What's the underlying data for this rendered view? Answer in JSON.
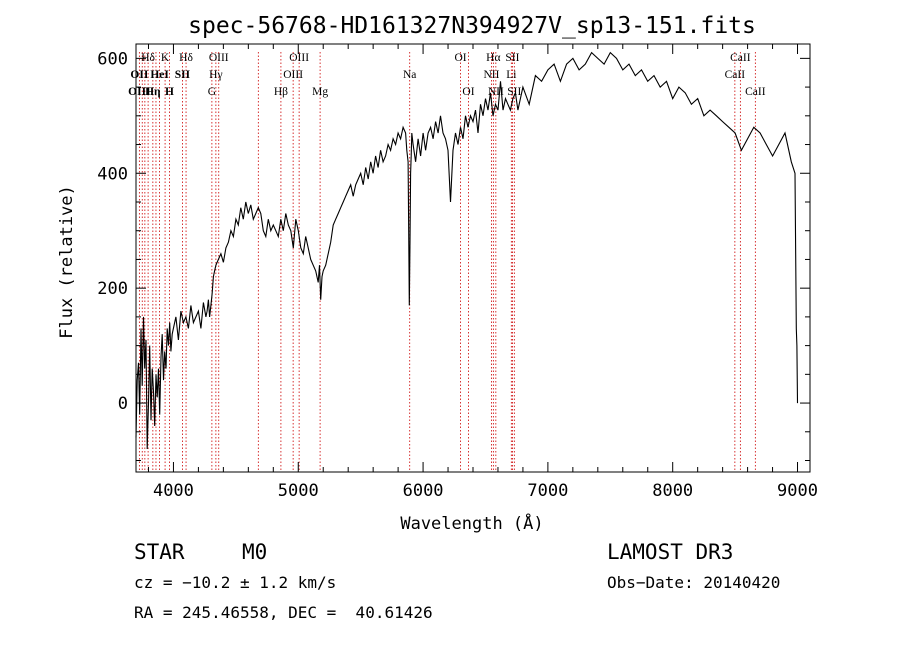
{
  "chart_data": {
    "type": "line",
    "title": "spec-56768-HD161327N394927V_sp13-151.fits",
    "xlabel": "Wavelength (Å)",
    "ylabel": "Flux (relative)",
    "xlim": [
      3700,
      9100
    ],
    "ylim": [
      -120,
      625
    ],
    "xticks": [
      4000,
      5000,
      6000,
      7000,
      8000,
      9000
    ],
    "yticks": [
      0,
      200,
      400,
      600
    ],
    "x": [
      3700,
      3710,
      3720,
      3730,
      3740,
      3750,
      3760,
      3770,
      3780,
      3790,
      3800,
      3810,
      3820,
      3830,
      3840,
      3850,
      3860,
      3870,
      3880,
      3890,
      3900,
      3910,
      3920,
      3930,
      3940,
      3950,
      3960,
      3970,
      3980,
      3990,
      4000,
      4020,
      4040,
      4060,
      4080,
      4100,
      4120,
      4140,
      4160,
      4180,
      4200,
      4220,
      4240,
      4260,
      4270,
      4280,
      4290,
      4300,
      4310,
      4320,
      4330,
      4340,
      4360,
      4380,
      4400,
      4420,
      4440,
      4460,
      4480,
      4500,
      4520,
      4540,
      4560,
      4580,
      4600,
      4620,
      4640,
      4660,
      4680,
      4700,
      4720,
      4740,
      4760,
      4780,
      4800,
      4820,
      4840,
      4860,
      4880,
      4900,
      4920,
      4940,
      4960,
      4980,
      5000,
      5020,
      5040,
      5060,
      5080,
      5100,
      5120,
      5140,
      5160,
      5170,
      5180,
      5190,
      5200,
      5220,
      5240,
      5260,
      5280,
      5300,
      5320,
      5340,
      5360,
      5380,
      5400,
      5420,
      5440,
      5460,
      5480,
      5500,
      5520,
      5540,
      5560,
      5580,
      5600,
      5620,
      5640,
      5660,
      5680,
      5700,
      5720,
      5740,
      5760,
      5780,
      5800,
      5820,
      5840,
      5860,
      5870,
      5880,
      5885,
      5890,
      5895,
      5900,
      5905,
      5910,
      5920,
      5940,
      5960,
      5980,
      6000,
      6020,
      6040,
      6060,
      6080,
      6100,
      6120,
      6140,
      6160,
      6180,
      6200,
      6220,
      6240,
      6260,
      6280,
      6300,
      6320,
      6340,
      6360,
      6380,
      6400,
      6420,
      6440,
      6460,
      6480,
      6500,
      6520,
      6540,
      6560,
      6580,
      6600,
      6620,
      6640,
      6660,
      6680,
      6700,
      6720,
      6740,
      6760,
      6780,
      6800,
      6850,
      6900,
      6950,
      7000,
      7050,
      7100,
      7150,
      7200,
      7250,
      7300,
      7350,
      7400,
      7450,
      7500,
      7550,
      7600,
      7650,
      7700,
      7750,
      7800,
      7850,
      7900,
      7950,
      8000,
      8050,
      8100,
      8150,
      8200,
      8250,
      8300,
      8350,
      8400,
      8450,
      8500,
      8550,
      8600,
      8650,
      8700,
      8750,
      8800,
      8850,
      8900,
      8950,
      8980,
      8990,
      8995,
      9000
    ],
    "y": [
      -60,
      40,
      70,
      -20,
      130,
      30,
      150,
      60,
      110,
      -80,
      0,
      100,
      -30,
      60,
      20,
      -40,
      50,
      10,
      60,
      -20,
      80,
      120,
      40,
      90,
      60,
      130,
      100,
      140,
      90,
      120,
      130,
      150,
      110,
      160,
      140,
      150,
      130,
      170,
      140,
      150,
      160,
      130,
      175,
      150,
      160,
      180,
      150,
      170,
      190,
      220,
      230,
      240,
      250,
      260,
      245,
      270,
      280,
      300,
      290,
      320,
      310,
      340,
      320,
      350,
      330,
      345,
      320,
      330,
      340,
      330,
      300,
      290,
      320,
      300,
      310,
      300,
      290,
      320,
      300,
      330,
      310,
      300,
      270,
      320,
      300,
      270,
      260,
      290,
      270,
      250,
      240,
      230,
      210,
      240,
      180,
      220,
      230,
      240,
      260,
      280,
      310,
      320,
      330,
      340,
      350,
      360,
      370,
      380,
      360,
      380,
      390,
      400,
      380,
      410,
      390,
      420,
      400,
      430,
      410,
      440,
      420,
      430,
      450,
      440,
      460,
      450,
      470,
      460,
      480,
      470,
      440,
      420,
      300,
      170,
      280,
      400,
      430,
      470,
      450,
      420,
      460,
      430,
      470,
      440,
      470,
      480,
      460,
      490,
      470,
      500,
      470,
      460,
      440,
      350,
      440,
      470,
      450,
      480,
      460,
      500,
      480,
      500,
      490,
      510,
      470,
      520,
      500,
      530,
      510,
      540,
      500,
      520,
      510,
      560,
      510,
      530,
      520,
      510,
      530,
      540,
      510,
      530,
      550,
      520,
      570,
      560,
      580,
      590,
      560,
      590,
      600,
      580,
      590,
      610,
      600,
      590,
      610,
      600,
      580,
      590,
      570,
      580,
      560,
      570,
      550,
      560,
      530,
      550,
      540,
      520,
      530,
      500,
      510,
      500,
      490,
      480,
      470,
      440,
      460,
      480,
      470,
      450,
      430,
      450,
      470,
      420,
      400,
      130,
      100,
      0
    ]
  },
  "lines": [
    {
      "label": "Hδ",
      "lambda": 3797,
      "row": 0,
      "bold": false
    },
    {
      "label": "K",
      "lambda": 3933,
      "row": 0,
      "bold": false
    },
    {
      "label": "Hδ",
      "lambda": 4101,
      "row": 0,
      "bold": false
    },
    {
      "label": "OIII",
      "lambda": 4363,
      "row": 0,
      "bold": false
    },
    {
      "label": "OIII",
      "lambda": 5007,
      "row": 0,
      "bold": false
    },
    {
      "label": "OI",
      "lambda": 6300,
      "row": 0,
      "bold": false
    },
    {
      "label": "Hα",
      "lambda": 6563,
      "row": 0,
      "bold": false
    },
    {
      "label": "SII",
      "lambda": 6716,
      "row": 0,
      "bold": false
    },
    {
      "label": "CaII",
      "lambda": 8542,
      "row": 0,
      "bold": false
    },
    {
      "label": "OII",
      "lambda": 3727,
      "row": 1,
      "bold": true
    },
    {
      "label": "HeI",
      "lambda": 3889,
      "row": 1,
      "bold": true
    },
    {
      "label": "SII",
      "lambda": 4072,
      "row": 1,
      "bold": true
    },
    {
      "label": "Hγ",
      "lambda": 4340,
      "row": 1,
      "bold": false
    },
    {
      "label": "OIII",
      "lambda": 4959,
      "row": 1,
      "bold": false
    },
    {
      "label": "Na",
      "lambda": 5893,
      "row": 1,
      "bold": false
    },
    {
      "label": "NII",
      "lambda": 6548,
      "row": 1,
      "bold": false
    },
    {
      "label": "Li",
      "lambda": 6707,
      "row": 1,
      "bold": false
    },
    {
      "label": "CaII",
      "lambda": 8498,
      "row": 1,
      "bold": false
    },
    {
      "label": "OIII",
      "lambda": 3727,
      "row": 2,
      "bold": true
    },
    {
      "label": "Hη",
      "lambda": 3835,
      "row": 2,
      "bold": true
    },
    {
      "label": "H",
      "lambda": 3968,
      "row": 2,
      "bold": true
    },
    {
      "label": "G",
      "lambda": 4308,
      "row": 2,
      "bold": false
    },
    {
      "label": "Hβ",
      "lambda": 4861,
      "row": 2,
      "bold": false
    },
    {
      "label": "Mg",
      "lambda": 5175,
      "row": 2,
      "bold": false
    },
    {
      "label": "OI",
      "lambda": 6364,
      "row": 2,
      "bold": false
    },
    {
      "label": "NII",
      "lambda": 6583,
      "row": 2,
      "bold": false
    },
    {
      "label": "SII",
      "lambda": 6731,
      "row": 2,
      "bold": false
    },
    {
      "label": "CaII",
      "lambda": 8662,
      "row": 2,
      "bold": false
    }
  ],
  "extra_line_positions": [
    3750,
    3771,
    3860,
    4680
  ],
  "footer": {
    "class": "STAR",
    "subclass": "M0",
    "survey": "LAMOST DR3",
    "cz": "cz = −10.2 ± 1.2 km/s",
    "obs_date": "Obs−Date: 20140420",
    "radec": "RA = 245.46558, DEC =  40.61426"
  },
  "colors": {
    "line_marker": "#cc0000",
    "spectrum": "#000000"
  }
}
